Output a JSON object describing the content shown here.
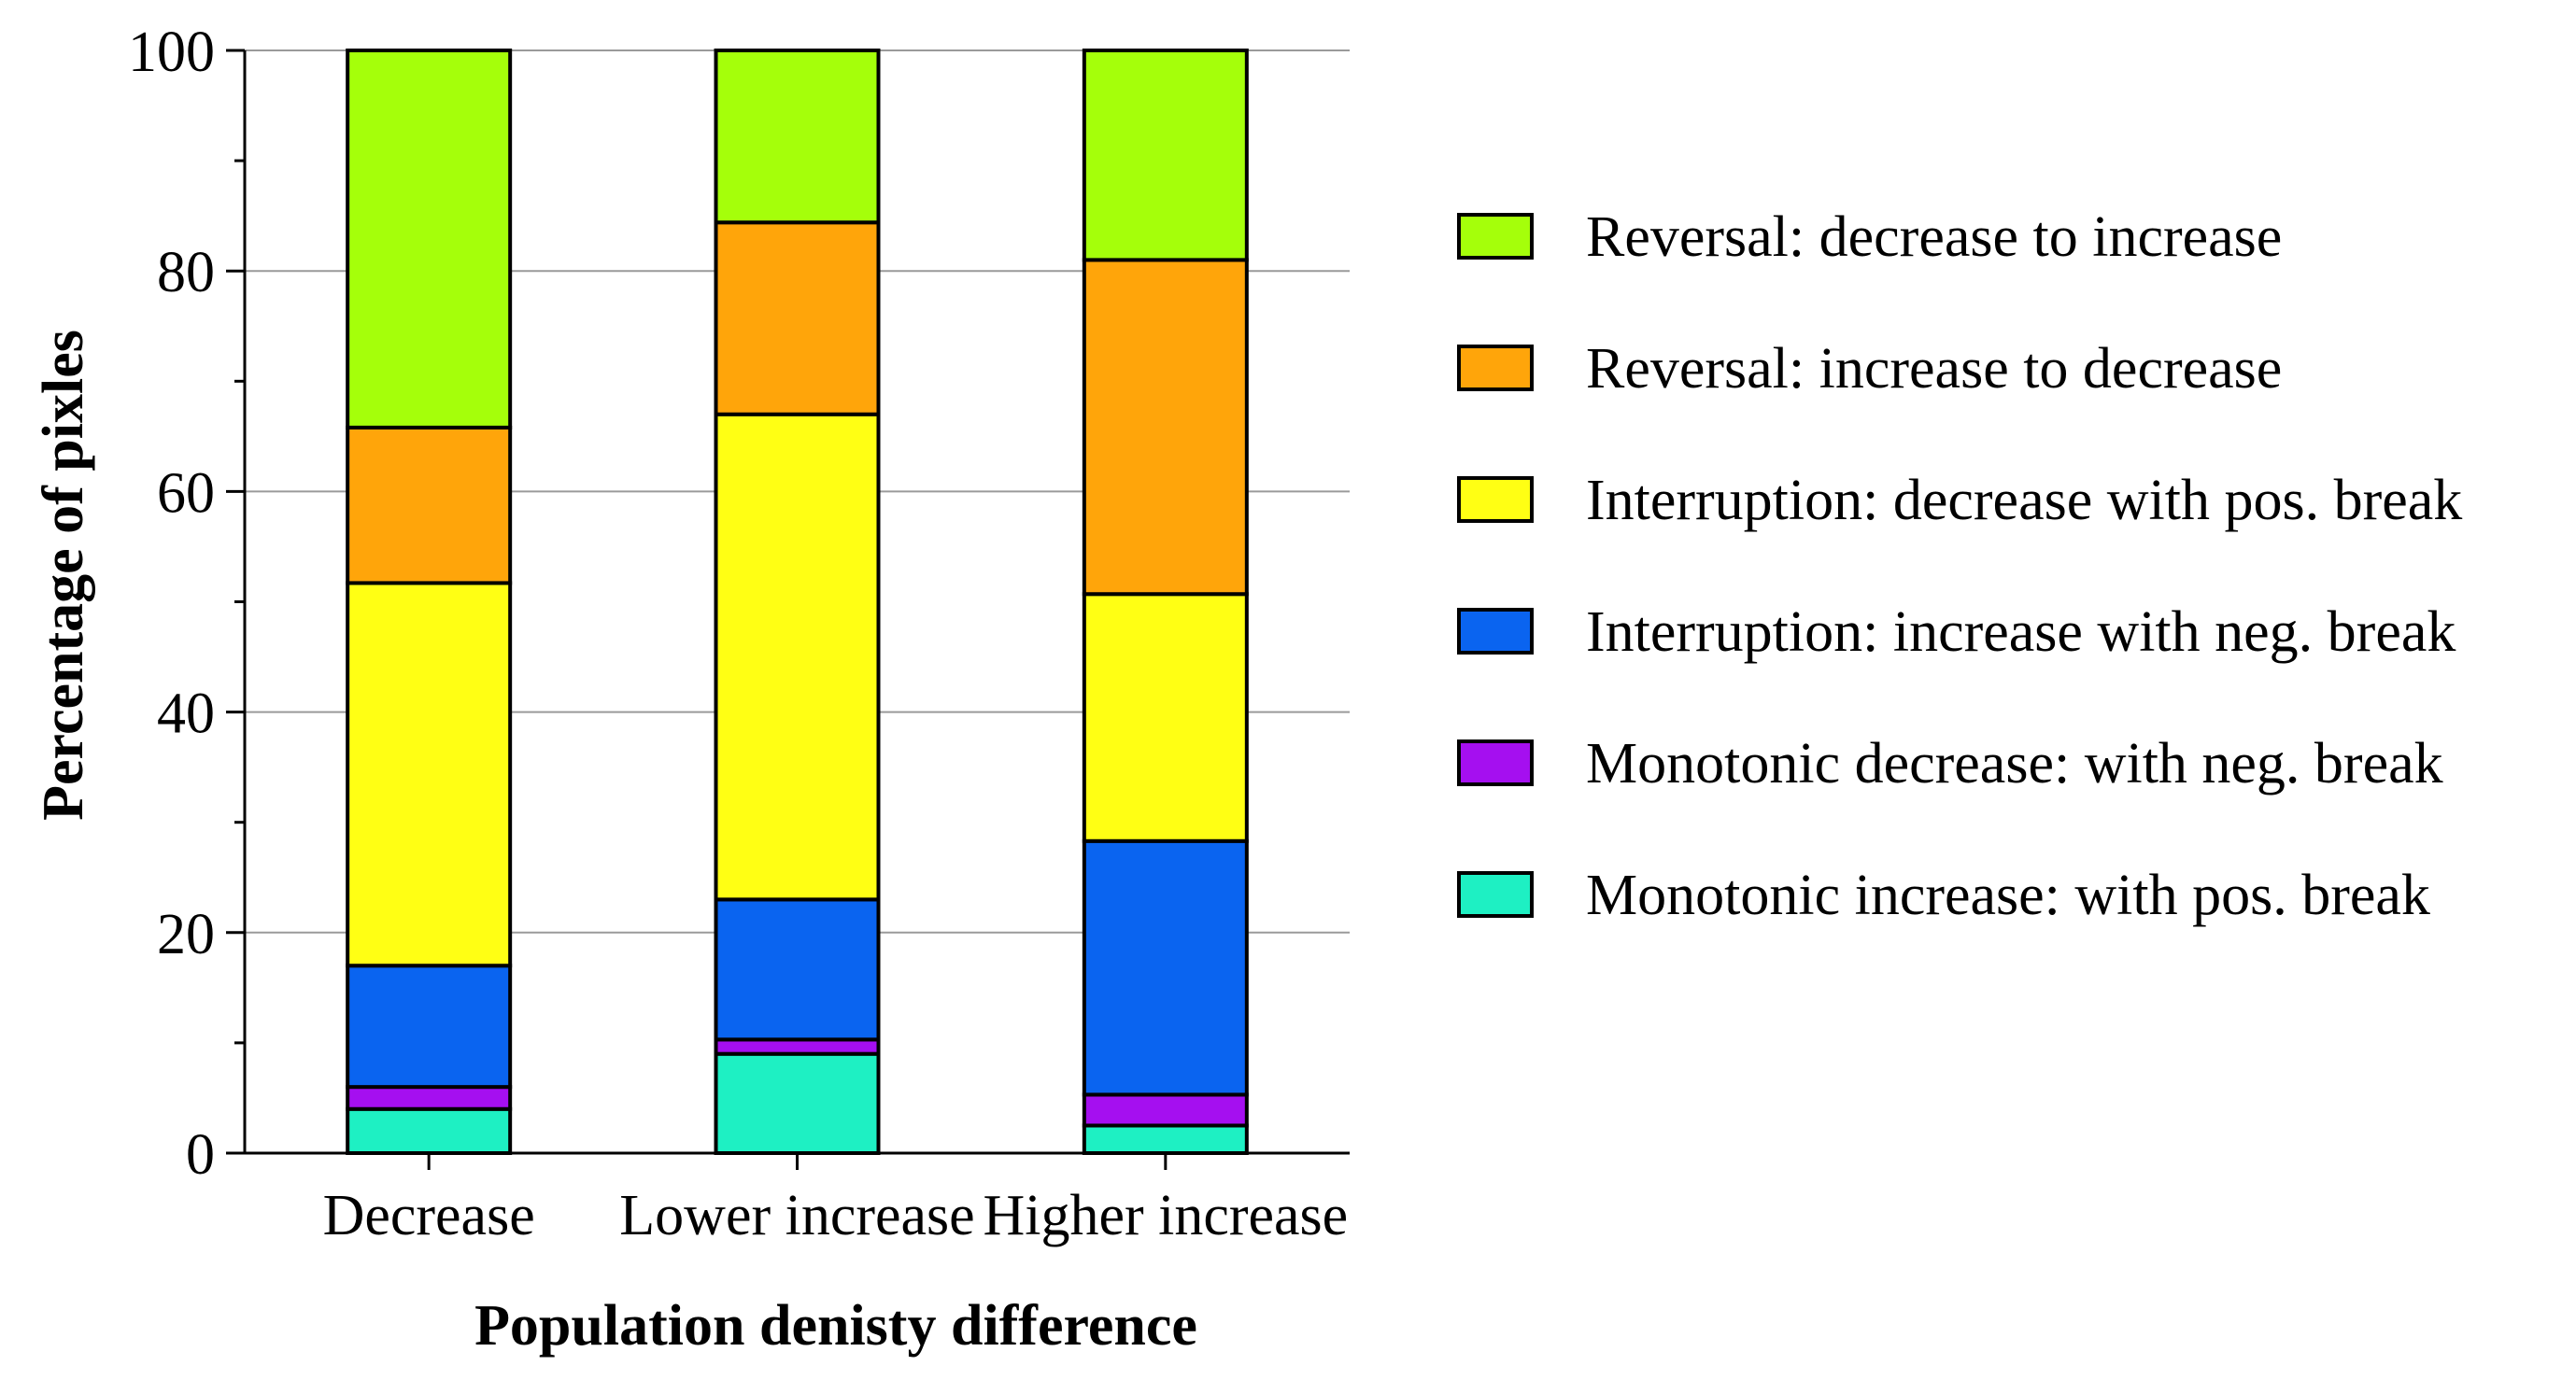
{
  "chart_data": {
    "type": "bar",
    "stacked": true,
    "title": "",
    "xlabel": "Population denisty difference",
    "ylabel": "Percentage of pixles",
    "ylim": [
      0,
      100
    ],
    "yticks": [
      "0",
      "20",
      "40",
      "60",
      "80",
      "100"
    ],
    "grid": true,
    "legend_position": "right",
    "categories": [
      "Decrease",
      "Lower increase",
      "Higher increase"
    ],
    "series": [
      {
        "name": "Monotonic increase: with pos. break",
        "color": "#1ef0c3",
        "values": [
          4.0,
          9.0,
          2.5
        ]
      },
      {
        "name": "Monotonic decrease: with neg. break",
        "color": "#a50ff0",
        "values": [
          2.0,
          1.3,
          2.8
        ]
      },
      {
        "name": "Interruption: increase with neg. break",
        "color": "#0a64f0",
        "values": [
          11.0,
          12.7,
          23.0
        ]
      },
      {
        "name": "Interruption: decrease with pos. break",
        "color": "#ffff14",
        "values": [
          34.7,
          44.0,
          22.4
        ]
      },
      {
        "name": "Reversal: increase to decrease",
        "color": "#ffa50a",
        "values": [
          14.1,
          17.4,
          30.3
        ]
      },
      {
        "name": "Reversal: decrease to increase",
        "color": "#a5ff0a",
        "values": [
          34.2,
          15.6,
          19.0
        ]
      }
    ]
  }
}
